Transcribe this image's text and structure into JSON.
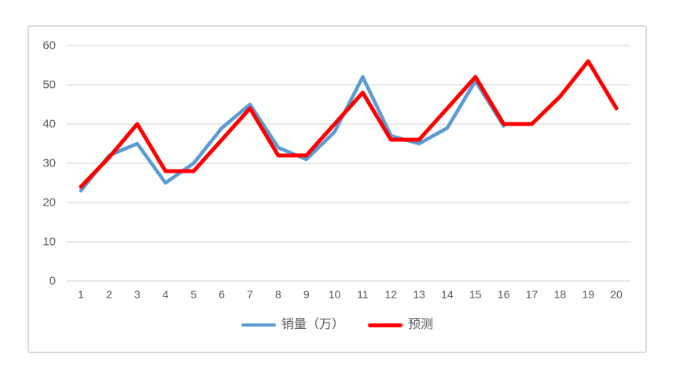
{
  "chart_data": {
    "type": "line",
    "title": "",
    "xlabel": "",
    "ylabel": "",
    "categories": [
      1,
      2,
      3,
      4,
      5,
      6,
      7,
      8,
      9,
      10,
      11,
      12,
      13,
      14,
      15,
      16,
      17,
      18,
      19,
      20
    ],
    "series": [
      {
        "name": "销量（万）",
        "color": "#5B9BD5",
        "line_width": 4.5,
        "values": [
          23,
          32,
          35,
          25,
          30,
          39,
          45,
          34,
          31,
          38,
          52,
          37,
          35,
          39,
          51,
          39.5
        ]
      },
      {
        "name": "预测",
        "color": "#FF0000",
        "line_width": 5,
        "values": [
          24,
          31.5,
          40,
          28,
          28,
          36,
          44,
          32,
          32,
          40,
          48,
          36,
          36,
          44,
          52,
          40,
          40,
          47,
          56,
          44
        ]
      }
    ],
    "ylim": [
      0,
      60
    ],
    "yticks": [
      0,
      10,
      20,
      30,
      40,
      50,
      60
    ],
    "grid": true,
    "legend_position": "bottom"
  },
  "colors": {
    "grid_line": "#D9D9D9",
    "axis_text": "#595959",
    "card_border": "#D9D9D9",
    "background": "#FFFFFF"
  }
}
